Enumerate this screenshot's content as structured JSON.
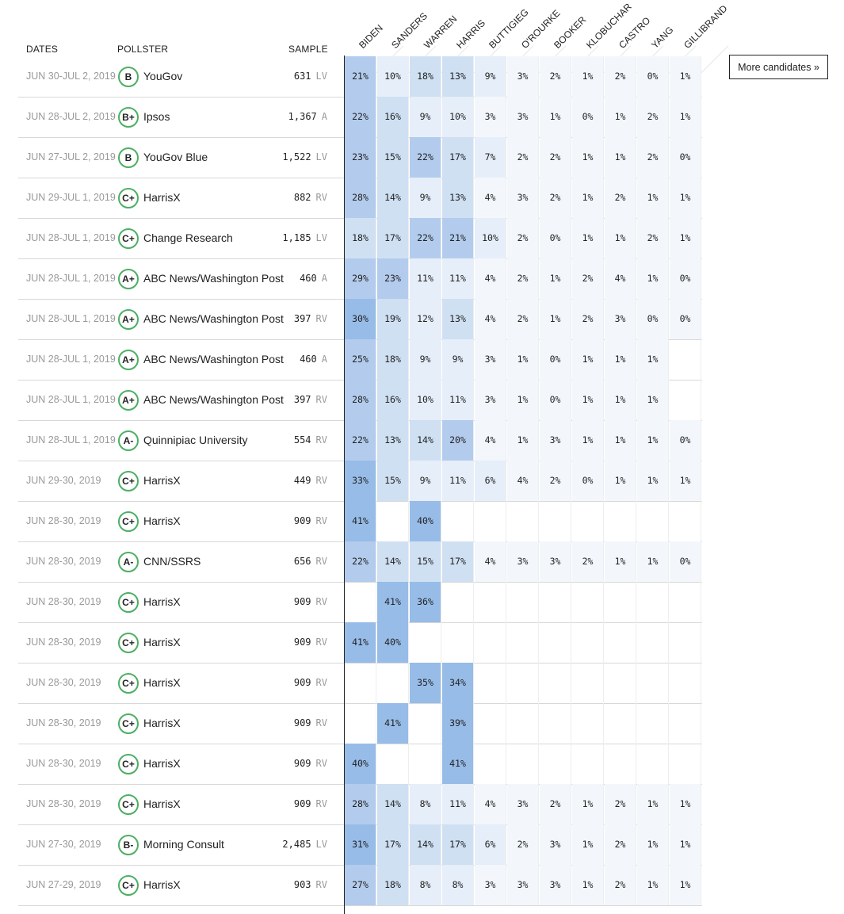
{
  "headers": {
    "dates": "DATES",
    "pollster": "POLLSTER",
    "sample": "SAMPLE"
  },
  "candidates": [
    "BIDEN",
    "SANDERS",
    "WARREN",
    "HARRIS",
    "BUTTIGIEG",
    "O'ROURKE",
    "BOOKER",
    "KLOBUCHAR",
    "CASTRO",
    "YANG",
    "GILLIBRAND"
  ],
  "more_candidates_label": "More candidates »",
  "colors": {
    "grade_ring": "#4caf64",
    "heat": [
      "#f3f7fc",
      "#e6eef9",
      "#cfe0f3",
      "#b3cced",
      "#97bce8"
    ]
  },
  "rows": [
    {
      "date": "JUN 30-JUL 2, 2019",
      "grade": "B",
      "pollster": "YouGov",
      "sample": "631",
      "pop": "LV",
      "values": [
        "21%",
        "10%",
        "18%",
        "13%",
        "9%",
        "3%",
        "2%",
        "1%",
        "2%",
        "0%",
        "1%"
      ]
    },
    {
      "date": "JUN 28-JUL 2, 2019",
      "grade": "B+",
      "pollster": "Ipsos",
      "sample": "1,367",
      "pop": "A",
      "values": [
        "22%",
        "16%",
        "9%",
        "10%",
        "3%",
        "3%",
        "1%",
        "0%",
        "1%",
        "2%",
        "1%"
      ]
    },
    {
      "date": "JUN 27-JUL 2, 2019",
      "grade": "B",
      "pollster": "YouGov Blue",
      "sample": "1,522",
      "pop": "LV",
      "values": [
        "23%",
        "15%",
        "22%",
        "17%",
        "7%",
        "2%",
        "2%",
        "1%",
        "1%",
        "2%",
        "0%"
      ]
    },
    {
      "date": "JUN 29-JUL 1, 2019",
      "grade": "C+",
      "pollster": "HarrisX",
      "sample": "882",
      "pop": "RV",
      "values": [
        "28%",
        "14%",
        "9%",
        "13%",
        "4%",
        "3%",
        "2%",
        "1%",
        "2%",
        "1%",
        "1%"
      ]
    },
    {
      "date": "JUN 28-JUL 1, 2019",
      "grade": "C+",
      "pollster": "Change Research",
      "sample": "1,185",
      "pop": "LV",
      "values": [
        "18%",
        "17%",
        "22%",
        "21%",
        "10%",
        "2%",
        "0%",
        "1%",
        "1%",
        "2%",
        "1%"
      ]
    },
    {
      "date": "JUN 28-JUL 1, 2019",
      "grade": "A+",
      "pollster": "ABC News/Washington Post",
      "sample": "460",
      "pop": "A",
      "values": [
        "29%",
        "23%",
        "11%",
        "11%",
        "4%",
        "2%",
        "1%",
        "2%",
        "4%",
        "1%",
        "0%"
      ]
    },
    {
      "date": "JUN 28-JUL 1, 2019",
      "grade": "A+",
      "pollster": "ABC News/Washington Post",
      "sample": "397",
      "pop": "RV",
      "values": [
        "30%",
        "19%",
        "12%",
        "13%",
        "4%",
        "2%",
        "1%",
        "2%",
        "3%",
        "0%",
        "0%"
      ]
    },
    {
      "date": "JUN 28-JUL 1, 2019",
      "grade": "A+",
      "pollster": "ABC News/Washington Post",
      "sample": "460",
      "pop": "A",
      "values": [
        "25%",
        "18%",
        "9%",
        "9%",
        "3%",
        "1%",
        "0%",
        "1%",
        "1%",
        "1%",
        ""
      ]
    },
    {
      "date": "JUN 28-JUL 1, 2019",
      "grade": "A+",
      "pollster": "ABC News/Washington Post",
      "sample": "397",
      "pop": "RV",
      "values": [
        "28%",
        "16%",
        "10%",
        "11%",
        "3%",
        "1%",
        "0%",
        "1%",
        "1%",
        "1%",
        ""
      ]
    },
    {
      "date": "JUN 28-JUL 1, 2019",
      "grade": "A-",
      "pollster": "Quinnipiac University",
      "sample": "554",
      "pop": "RV",
      "values": [
        "22%",
        "13%",
        "14%",
        "20%",
        "4%",
        "1%",
        "3%",
        "1%",
        "1%",
        "1%",
        "0%"
      ]
    },
    {
      "date": "JUN 29-30, 2019",
      "grade": "C+",
      "pollster": "HarrisX",
      "sample": "449",
      "pop": "RV",
      "values": [
        "33%",
        "15%",
        "9%",
        "11%",
        "6%",
        "4%",
        "2%",
        "0%",
        "1%",
        "1%",
        "1%"
      ]
    },
    {
      "date": "JUN 28-30, 2019",
      "grade": "C+",
      "pollster": "HarrisX",
      "sample": "909",
      "pop": "RV",
      "values": [
        "41%",
        "",
        "40%",
        "",
        "",
        "",
        "",
        "",
        "",
        "",
        ""
      ]
    },
    {
      "date": "JUN 28-30, 2019",
      "grade": "A-",
      "pollster": "CNN/SSRS",
      "sample": "656",
      "pop": "RV",
      "values": [
        "22%",
        "14%",
        "15%",
        "17%",
        "4%",
        "3%",
        "3%",
        "2%",
        "1%",
        "1%",
        "0%"
      ]
    },
    {
      "date": "JUN 28-30, 2019",
      "grade": "C+",
      "pollster": "HarrisX",
      "sample": "909",
      "pop": "RV",
      "values": [
        "",
        "41%",
        "36%",
        "",
        "",
        "",
        "",
        "",
        "",
        "",
        ""
      ]
    },
    {
      "date": "JUN 28-30, 2019",
      "grade": "C+",
      "pollster": "HarrisX",
      "sample": "909",
      "pop": "RV",
      "values": [
        "41%",
        "40%",
        "",
        "",
        "",
        "",
        "",
        "",
        "",
        "",
        ""
      ]
    },
    {
      "date": "JUN 28-30, 2019",
      "grade": "C+",
      "pollster": "HarrisX",
      "sample": "909",
      "pop": "RV",
      "values": [
        "",
        "",
        "35%",
        "34%",
        "",
        "",
        "",
        "",
        "",
        "",
        ""
      ]
    },
    {
      "date": "JUN 28-30, 2019",
      "grade": "C+",
      "pollster": "HarrisX",
      "sample": "909",
      "pop": "RV",
      "values": [
        "",
        "41%",
        "",
        "39%",
        "",
        "",
        "",
        "",
        "",
        "",
        ""
      ]
    },
    {
      "date": "JUN 28-30, 2019",
      "grade": "C+",
      "pollster": "HarrisX",
      "sample": "909",
      "pop": "RV",
      "values": [
        "40%",
        "",
        "",
        "41%",
        "",
        "",
        "",
        "",
        "",
        "",
        ""
      ]
    },
    {
      "date": "JUN 28-30, 2019",
      "grade": "C+",
      "pollster": "HarrisX",
      "sample": "909",
      "pop": "RV",
      "values": [
        "28%",
        "14%",
        "8%",
        "11%",
        "4%",
        "3%",
        "2%",
        "1%",
        "2%",
        "1%",
        "1%"
      ]
    },
    {
      "date": "JUN 27-30, 2019",
      "grade": "B-",
      "pollster": "Morning Consult",
      "sample": "2,485",
      "pop": "LV",
      "values": [
        "31%",
        "17%",
        "14%",
        "17%",
        "6%",
        "2%",
        "3%",
        "1%",
        "2%",
        "1%",
        "1%"
      ]
    },
    {
      "date": "JUN 27-29, 2019",
      "grade": "C+",
      "pollster": "HarrisX",
      "sample": "903",
      "pop": "RV",
      "values": [
        "27%",
        "18%",
        "8%",
        "8%",
        "3%",
        "3%",
        "3%",
        "1%",
        "2%",
        "1%",
        "1%"
      ]
    }
  ]
}
